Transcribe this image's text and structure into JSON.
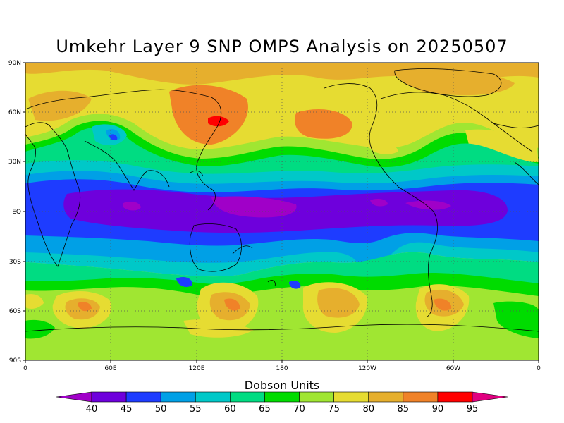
{
  "title": "Umkehr Layer 9 SNP OMPS Analysis on 20250507",
  "map": {
    "lat_labels": [
      "90N",
      "60N",
      "30N",
      "EQ",
      "30S",
      "60S",
      "90S"
    ],
    "lon_labels": [
      "0",
      "60E",
      "120E",
      "180",
      "120W",
      "60W",
      "0"
    ],
    "gridlines": true,
    "projection": "cylindrical equidistant"
  },
  "colorbar": {
    "title": "Dobson Units",
    "levels": [
      "40",
      "45",
      "50",
      "55",
      "60",
      "65",
      "70",
      "75",
      "80",
      "85",
      "90",
      "95"
    ],
    "colors": [
      "#a000c8",
      "#6e00dc",
      "#1e3cff",
      "#00a0e6",
      "#00c8c8",
      "#00dc82",
      "#00dc00",
      "#a0e632",
      "#e6dc32",
      "#e6af2d",
      "#f08228",
      "#ff0000",
      "#e00080"
    ]
  },
  "regions": {
    "tropical_low": "#6e00dc",
    "tropical_min": "#a000c8",
    "midlat_high": "#a0e632"
  }
}
